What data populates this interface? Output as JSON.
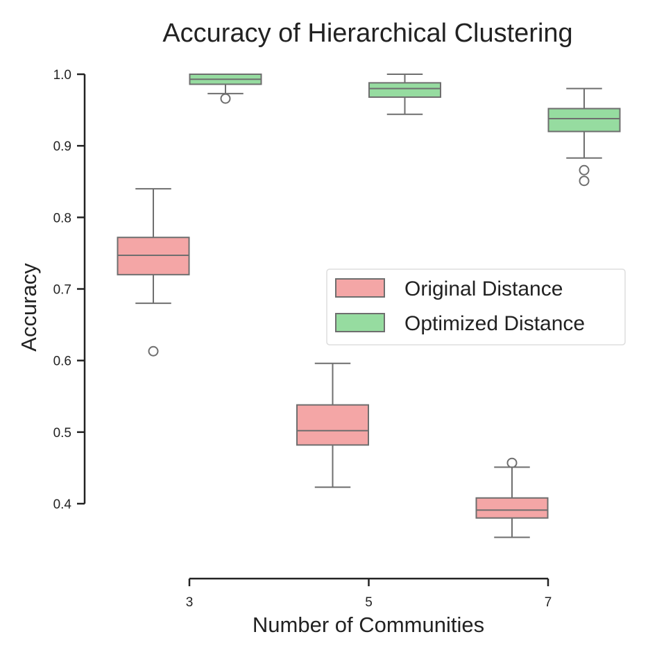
{
  "chart_data": {
    "type": "box",
    "title": "Accuracy of Hierarchical Clustering",
    "xlabel": "Number of Communities",
    "ylabel": "Accuracy",
    "categories": [
      "3",
      "5",
      "7"
    ],
    "yticks": [
      "0.4",
      "0.5",
      "0.6",
      "0.7",
      "0.8",
      "0.9",
      "1.0"
    ],
    "ylim": [
      0.4,
      1.0
    ],
    "legend_position": "center-right",
    "series": [
      {
        "name": "Original Distance",
        "color": "#f4a6a6",
        "boxes": [
          {
            "category": "3",
            "whisker_low": 0.68,
            "q1": 0.72,
            "median": 0.747,
            "q3": 0.772,
            "whisker_high": 0.84,
            "outliers": [
              0.613
            ]
          },
          {
            "category": "5",
            "whisker_low": 0.423,
            "q1": 0.482,
            "median": 0.502,
            "q3": 0.538,
            "whisker_high": 0.596,
            "outliers": []
          },
          {
            "category": "7",
            "whisker_low": 0.353,
            "q1": 0.38,
            "median": 0.391,
            "q3": 0.408,
            "whisker_high": 0.451,
            "outliers": [
              0.457
            ]
          }
        ]
      },
      {
        "name": "Optimized Distance",
        "color": "#96dca0",
        "boxes": [
          {
            "category": "3",
            "whisker_low": 0.973,
            "q1": 0.986,
            "median": 0.993,
            "q3": 1.0,
            "whisker_high": 1.0,
            "outliers": [
              0.966
            ]
          },
          {
            "category": "5",
            "whisker_low": 0.944,
            "q1": 0.968,
            "median": 0.98,
            "q3": 0.988,
            "whisker_high": 1.0,
            "outliers": []
          },
          {
            "category": "7",
            "whisker_low": 0.883,
            "q1": 0.92,
            "median": 0.938,
            "q3": 0.952,
            "whisker_high": 0.98,
            "outliers": [
              0.866,
              0.851
            ]
          }
        ]
      }
    ]
  }
}
